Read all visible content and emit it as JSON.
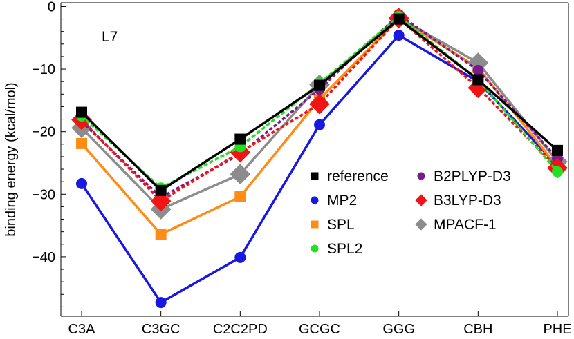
{
  "chart_data": {
    "type": "line",
    "annotation": "L7",
    "ylabel": "binding energy (kcal/mol)",
    "xlabel": "",
    "categories": [
      "C3A",
      "C3GC",
      "C2C2PD",
      "GCGC",
      "GGG",
      "CBH",
      "PHE"
    ],
    "ylim": [
      -49.5,
      0.6
    ],
    "yticks": [
      0,
      -10,
      -20,
      -30,
      -40
    ],
    "ytick_labels": [
      "0",
      "−10",
      "−20",
      "−30",
      "−40"
    ],
    "grid": false,
    "legend_position": "center-right",
    "series": [
      {
        "name": "reference",
        "color": "#000000",
        "marker": "square",
        "values": [
          -16.9,
          -29.4,
          -21.2,
          -12.6,
          -2.0,
          -11.7,
          -23.0
        ]
      },
      {
        "name": "MP2",
        "color": "#1818e0",
        "marker": "circle",
        "values": [
          -28.3,
          -47.3,
          -40.1,
          -18.9,
          -4.6,
          -12.0,
          -25.4
        ]
      },
      {
        "name": "SPL",
        "color": "#ff8c14",
        "marker": "square",
        "values": [
          -21.9,
          -36.4,
          -30.4,
          -14.8,
          -1.9,
          -9.8,
          -25.6
        ]
      },
      {
        "name": "SPL2",
        "color": "#22e022",
        "marker": "circle",
        "values": [
          -17.5,
          -29.0,
          -22.4,
          -12.3,
          -1.6,
          -11.7,
          -26.4
        ]
      },
      {
        "name": "B2PLYP-D3",
        "color": "#7a1a8c",
        "marker": "circle",
        "values": [
          -18.4,
          -30.5,
          -23.6,
          -13.2,
          -1.3,
          -10.2,
          -24.3
        ]
      },
      {
        "name": "B3LYP-D3",
        "color": "#f01414",
        "marker": "diamond",
        "values": [
          -18.1,
          -31.1,
          -23.3,
          -15.6,
          -1.9,
          -13.0,
          -25.8
        ]
      },
      {
        "name": "MPACF-1",
        "color": "#8c8c8c",
        "marker": "diamond",
        "values": [
          -19.4,
          -32.4,
          -26.8,
          -12.5,
          -1.8,
          -9.0,
          -24.8
        ]
      }
    ]
  }
}
